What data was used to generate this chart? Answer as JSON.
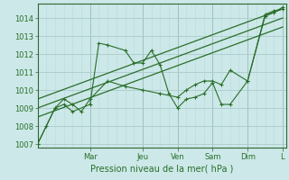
{
  "xlabel": "Pression niveau de la mer( hPa )",
  "background_color": "#cce8e8",
  "grid_color": "#aacccc",
  "line_color": "#2a6e2a",
  "border_color": "#336633",
  "xlim": [
    0,
    14.2
  ],
  "ylim": [
    1006.8,
    1014.8
  ],
  "yticks": [
    1007,
    1008,
    1009,
    1010,
    1011,
    1012,
    1013,
    1014
  ],
  "day_labels": [
    "Mar",
    "Jeu",
    "Ven",
    "Sam",
    "Dim",
    "L"
  ],
  "day_positions": [
    3.0,
    6.0,
    8.0,
    10.0,
    12.0,
    14.0
  ],
  "line_main": {
    "x": [
      0,
      0.5,
      1.0,
      1.5,
      2.0,
      3.0,
      3.5,
      4.0,
      5.0,
      5.5,
      6.0,
      6.5,
      7.0,
      7.5,
      8.0,
      8.5,
      9.0,
      9.5,
      10.0,
      10.5,
      11.0,
      12.0,
      13.0,
      13.5,
      14.0
    ],
    "y": [
      1007.0,
      1008.0,
      1009.0,
      1009.2,
      1008.8,
      1009.2,
      1012.6,
      1012.5,
      1012.2,
      1011.5,
      1011.5,
      1012.2,
      1011.4,
      1009.8,
      1009.0,
      1009.5,
      1009.6,
      1009.8,
      1010.4,
      1009.2,
      1009.2,
      1010.5,
      1014.2,
      1014.4,
      1014.5
    ]
  },
  "line_secondary": {
    "x": [
      0,
      1.0,
      1.5,
      2.0,
      2.5,
      3.0,
      4.0,
      5.0,
      6.0,
      7.0,
      8.0,
      8.5,
      9.0,
      9.5,
      10.0,
      10.5,
      11.0,
      12.0,
      13.0,
      13.5,
      14.0
    ],
    "y": [
      1007.0,
      1009.0,
      1009.5,
      1009.2,
      1008.8,
      1009.5,
      1010.5,
      1010.2,
      1010.0,
      1009.8,
      1009.6,
      1010.0,
      1010.3,
      1010.5,
      1010.5,
      1010.3,
      1011.1,
      1010.5,
      1014.1,
      1014.3,
      1014.6
    ]
  },
  "trend1": {
    "x": [
      0,
      14.0
    ],
    "y": [
      1009.5,
      1014.5
    ]
  },
  "trend2": {
    "x": [
      0,
      14.0
    ],
    "y": [
      1008.5,
      1013.5
    ]
  },
  "trend3": {
    "x": [
      0,
      14.0
    ],
    "y": [
      1009.0,
      1014.0
    ]
  }
}
